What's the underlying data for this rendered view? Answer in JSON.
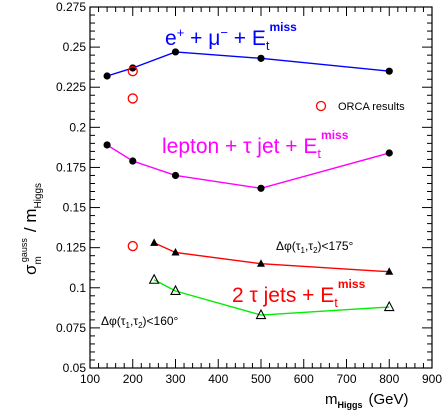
{
  "chart_data": {
    "type": "line",
    "xlabel": {
      "main": "m",
      "sub": "Higgs",
      "unit": "(GeV)"
    },
    "ylabel": {
      "main": "σ",
      "sub": "m",
      "sup": "gauss",
      "divider": "/ m",
      "sub2": "Higgs"
    },
    "xlim": [
      100,
      900
    ],
    "ylim": [
      0.05,
      0.275
    ],
    "x_ticks": [
      100,
      200,
      300,
      400,
      500,
      600,
      700,
      800,
      900
    ],
    "y_ticks": [
      0.05,
      0.075,
      0.1,
      0.125,
      0.15,
      0.175,
      0.2,
      0.225,
      0.25,
      0.275
    ],
    "x_tick_labels": [
      "100",
      "200",
      "300",
      "400",
      "500",
      "600",
      "700",
      "800",
      "900"
    ],
    "y_tick_labels": [
      "0.05",
      "0.075",
      "0.1",
      "0.125",
      "0.15",
      "0.175",
      "0.2",
      "0.225",
      "0.25",
      "0.275"
    ],
    "grid": false,
    "series": [
      {
        "name": "e⁺ + μ⁻ + E_t^miss",
        "color": "#0000ff",
        "marker": "circle",
        "x": [
          140,
          200,
          300,
          500,
          800
        ],
        "y": [
          0.232,
          0.237,
          0.247,
          0.243,
          0.235
        ]
      },
      {
        "name": "lepton + τ jet + E_t^miss",
        "color": "#ff00ff",
        "marker": "circle",
        "x": [
          140,
          200,
          300,
          500,
          800
        ],
        "y": [
          0.189,
          0.179,
          0.17,
          0.162,
          0.184
        ]
      },
      {
        "name": "Δφ(τ₁,τ₂)<175°",
        "color": "#ff0000",
        "marker": "triangle",
        "x": [
          250,
          300,
          500,
          800
        ],
        "y": [
          0.128,
          0.122,
          0.115,
          0.11
        ]
      },
      {
        "name": "Δφ(τ₁,τ₂)<160°",
        "color": "#00ee00",
        "marker": "triangle-open",
        "x": [
          250,
          300,
          500,
          800
        ],
        "y": [
          0.105,
          0.098,
          0.083,
          0.088
        ]
      },
      {
        "name": "ORCA results",
        "color": "#ff0000",
        "marker": "circle-open",
        "line": false,
        "x": [
          200,
          200,
          200
        ],
        "y": [
          0.235,
          0.218,
          0.126
        ]
      }
    ],
    "annotations": {
      "emu": {
        "main": "e",
        "sup1": "+",
        "plus1": " + μ",
        "sup2": "−",
        "plus2": " + E",
        "sub": "t",
        "sup3": "miss"
      },
      "ltau": {
        "main": "lepton + τ jet + E",
        "sub": "t",
        "sup": "miss"
      },
      "tautau": {
        "main": "2 τ jets + E",
        "sub": "t",
        "sup": "miss"
      },
      "dphi175": {
        "pre": "Δφ(τ",
        "s1": "1",
        "mid": ",τ",
        "s2": "2",
        "post": ")<175°"
      },
      "dphi160": {
        "pre": "Δφ(τ",
        "s1": "1",
        "mid": ",τ",
        "s2": "2",
        "post": ")<160°"
      },
      "orca": "ORCA results"
    }
  }
}
